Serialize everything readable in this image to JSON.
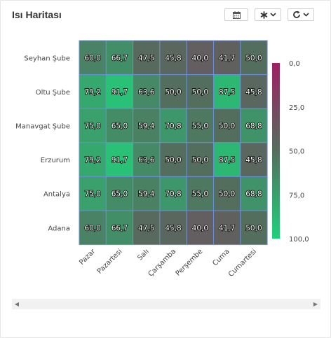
{
  "header": {
    "title": "Isı Haritası"
  },
  "toolbar": {
    "calendar_icon": "calendar-icon",
    "filter_icon": "asterisk-icon",
    "refresh_icon": "refresh-icon"
  },
  "chart_data": {
    "type": "heatmap",
    "x_categories": [
      "Pazar",
      "Pazartesi",
      "Salı",
      "Çarşamba",
      "Perşembe",
      "Cuma",
      "Cumartesi"
    ],
    "y_categories": [
      "Seyhan Şube",
      "Oltu Şube",
      "Manavgat Şube",
      "Erzurum",
      "Antalya",
      "Adana"
    ],
    "values": [
      [
        "60,0",
        "66,7",
        "47,5",
        "45,8",
        "40,0",
        "41,7",
        "50,0"
      ],
      [
        "79,2",
        "91,7",
        "63,6",
        "50,0",
        "50,0",
        "87,5",
        "45,8"
      ],
      [
        "75,0",
        "65,0",
        "59,4",
        "70,8",
        "55,0",
        "50,0",
        "68,8"
      ],
      [
        "79,2",
        "91,7",
        "63,6",
        "50,0",
        "50,0",
        "87,5",
        "45,8"
      ],
      [
        "75,0",
        "65,0",
        "59,4",
        "70,8",
        "55,0",
        "50,0",
        "68,8"
      ],
      [
        "60,0",
        "66,7",
        "47,5",
        "45,8",
        "40,0",
        "41,7",
        "50,0"
      ]
    ],
    "color_scale": {
      "min": 0,
      "max": 100,
      "stops": [
        {
          "value": 0,
          "color": "#9e1f63"
        },
        {
          "value": 50,
          "color": "#546e5e"
        },
        {
          "value": 100,
          "color": "#1fd17a"
        }
      ],
      "tick_labels": [
        "0,0",
        "25,0",
        "50,0",
        "75,0",
        "100,0"
      ]
    },
    "cell_border_color": "#6a8fd8",
    "legend_position": "right"
  }
}
